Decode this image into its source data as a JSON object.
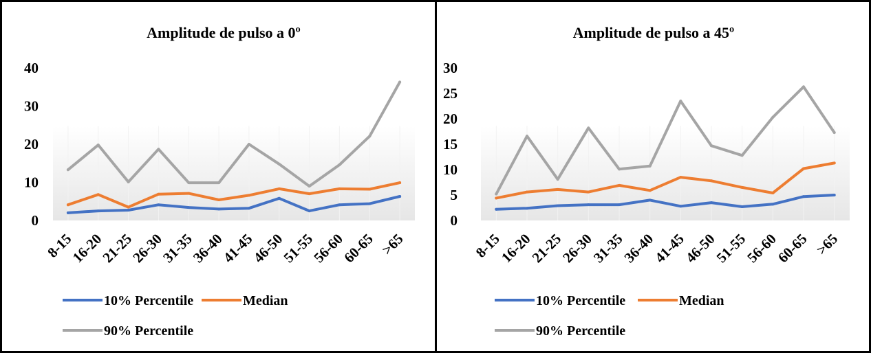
{
  "chart_data": [
    {
      "type": "line",
      "title": "Amplitude de pulso a 0º",
      "xlabel": "",
      "ylabel": "",
      "ylim": [
        0,
        40
      ],
      "yticks": [
        0,
        10,
        20,
        30,
        40
      ],
      "categories": [
        "8-15",
        "16-20",
        "21-25",
        "26-30",
        "31-35",
        "36-40",
        "41-45",
        "46-50",
        "51-55",
        "56-60",
        "60-65",
        ">65"
      ],
      "series": [
        {
          "name": "10% Percentile",
          "color": "#4472C4",
          "values": [
            2.0,
            2.5,
            2.7,
            4.1,
            3.4,
            3.0,
            3.2,
            5.8,
            2.5,
            4.1,
            4.4,
            6.3
          ]
        },
        {
          "name": "Median",
          "color": "#ED7D31",
          "values": [
            4.1,
            6.8,
            3.5,
            6.9,
            7.1,
            5.4,
            6.6,
            8.3,
            7.0,
            8.3,
            8.2,
            9.9
          ]
        },
        {
          "name": "90% Percentile",
          "color": "#A5A5A5",
          "values": [
            13.3,
            19.8,
            10.1,
            18.7,
            9.9,
            9.9,
            20.0,
            14.8,
            9.0,
            14.6,
            22.1,
            36.3
          ]
        }
      ],
      "grid": false,
      "legend": "bottom"
    },
    {
      "type": "line",
      "title": "Amplitude de pulso a 45º",
      "xlabel": "",
      "ylabel": "",
      "ylim": [
        0,
        30
      ],
      "yticks": [
        0,
        5,
        10,
        15,
        20,
        25,
        30
      ],
      "categories": [
        "8-15",
        "16-20",
        "21-25",
        "26-30",
        "31-35",
        "36-40",
        "41-45",
        "46-50",
        "51-55",
        "56-60",
        "60-65",
        ">65"
      ],
      "series": [
        {
          "name": "10% Percentile",
          "color": "#4472C4",
          "values": [
            2.2,
            2.4,
            2.9,
            3.1,
            3.1,
            4.0,
            2.8,
            3.5,
            2.7,
            3.2,
            4.7,
            5.0
          ]
        },
        {
          "name": "Median",
          "color": "#ED7D31",
          "values": [
            4.4,
            5.6,
            6.1,
            5.6,
            6.9,
            5.9,
            8.5,
            7.8,
            6.5,
            5.4,
            10.2,
            11.3
          ]
        },
        {
          "name": "90% Percentile",
          "color": "#A5A5A5",
          "values": [
            5.2,
            16.6,
            8.1,
            18.2,
            10.1,
            10.7,
            23.5,
            14.7,
            12.8,
            20.3,
            26.3,
            17.3
          ]
        }
      ],
      "grid": false,
      "legend": "bottom"
    }
  ]
}
